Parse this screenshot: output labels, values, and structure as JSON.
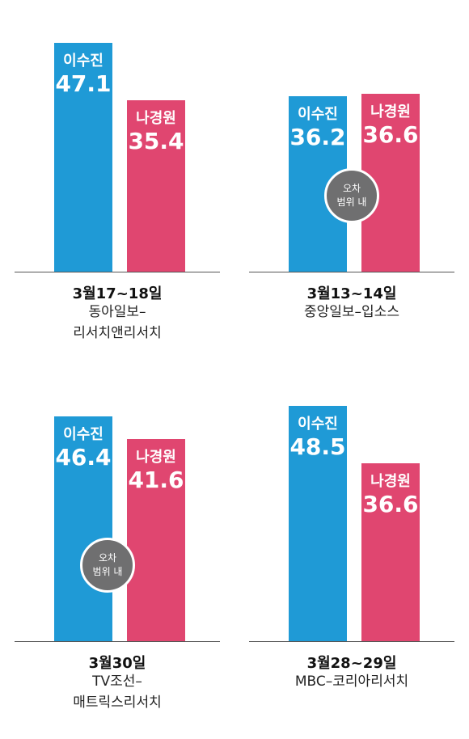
{
  "colors": {
    "lee": "#1f9ad6",
    "na": "#e04670",
    "badge": "#6f6f70"
  },
  "chart_data": [
    {
      "type": "bar",
      "categories": [
        "이수진",
        "나경원"
      ],
      "values": [
        47.1,
        35.4
      ],
      "date": "3월17~18일",
      "source_lines": [
        "동아일보–",
        "리서치앤리서치"
      ],
      "badge_lines": []
    },
    {
      "type": "bar",
      "categories": [
        "이수진",
        "나경원"
      ],
      "values": [
        36.2,
        36.6
      ],
      "date": "3월13~14일",
      "source_lines": [
        "중앙일보–입소스"
      ],
      "badge_lines": [
        "오차",
        "범위 내"
      ]
    },
    {
      "type": "bar",
      "categories": [
        "이수진",
        "나경원"
      ],
      "values": [
        46.4,
        41.6
      ],
      "date": "3월30일",
      "source_lines": [
        "TV조선–",
        "매트릭스리서치"
      ],
      "badge_lines": [
        "오차",
        "범위 내"
      ]
    },
    {
      "type": "bar",
      "categories": [
        "이수진",
        "나경원"
      ],
      "values": [
        48.5,
        36.6
      ],
      "date": "3월28~29일",
      "source_lines": [
        "MBC–코리아리서치"
      ],
      "badge_lines": []
    }
  ]
}
